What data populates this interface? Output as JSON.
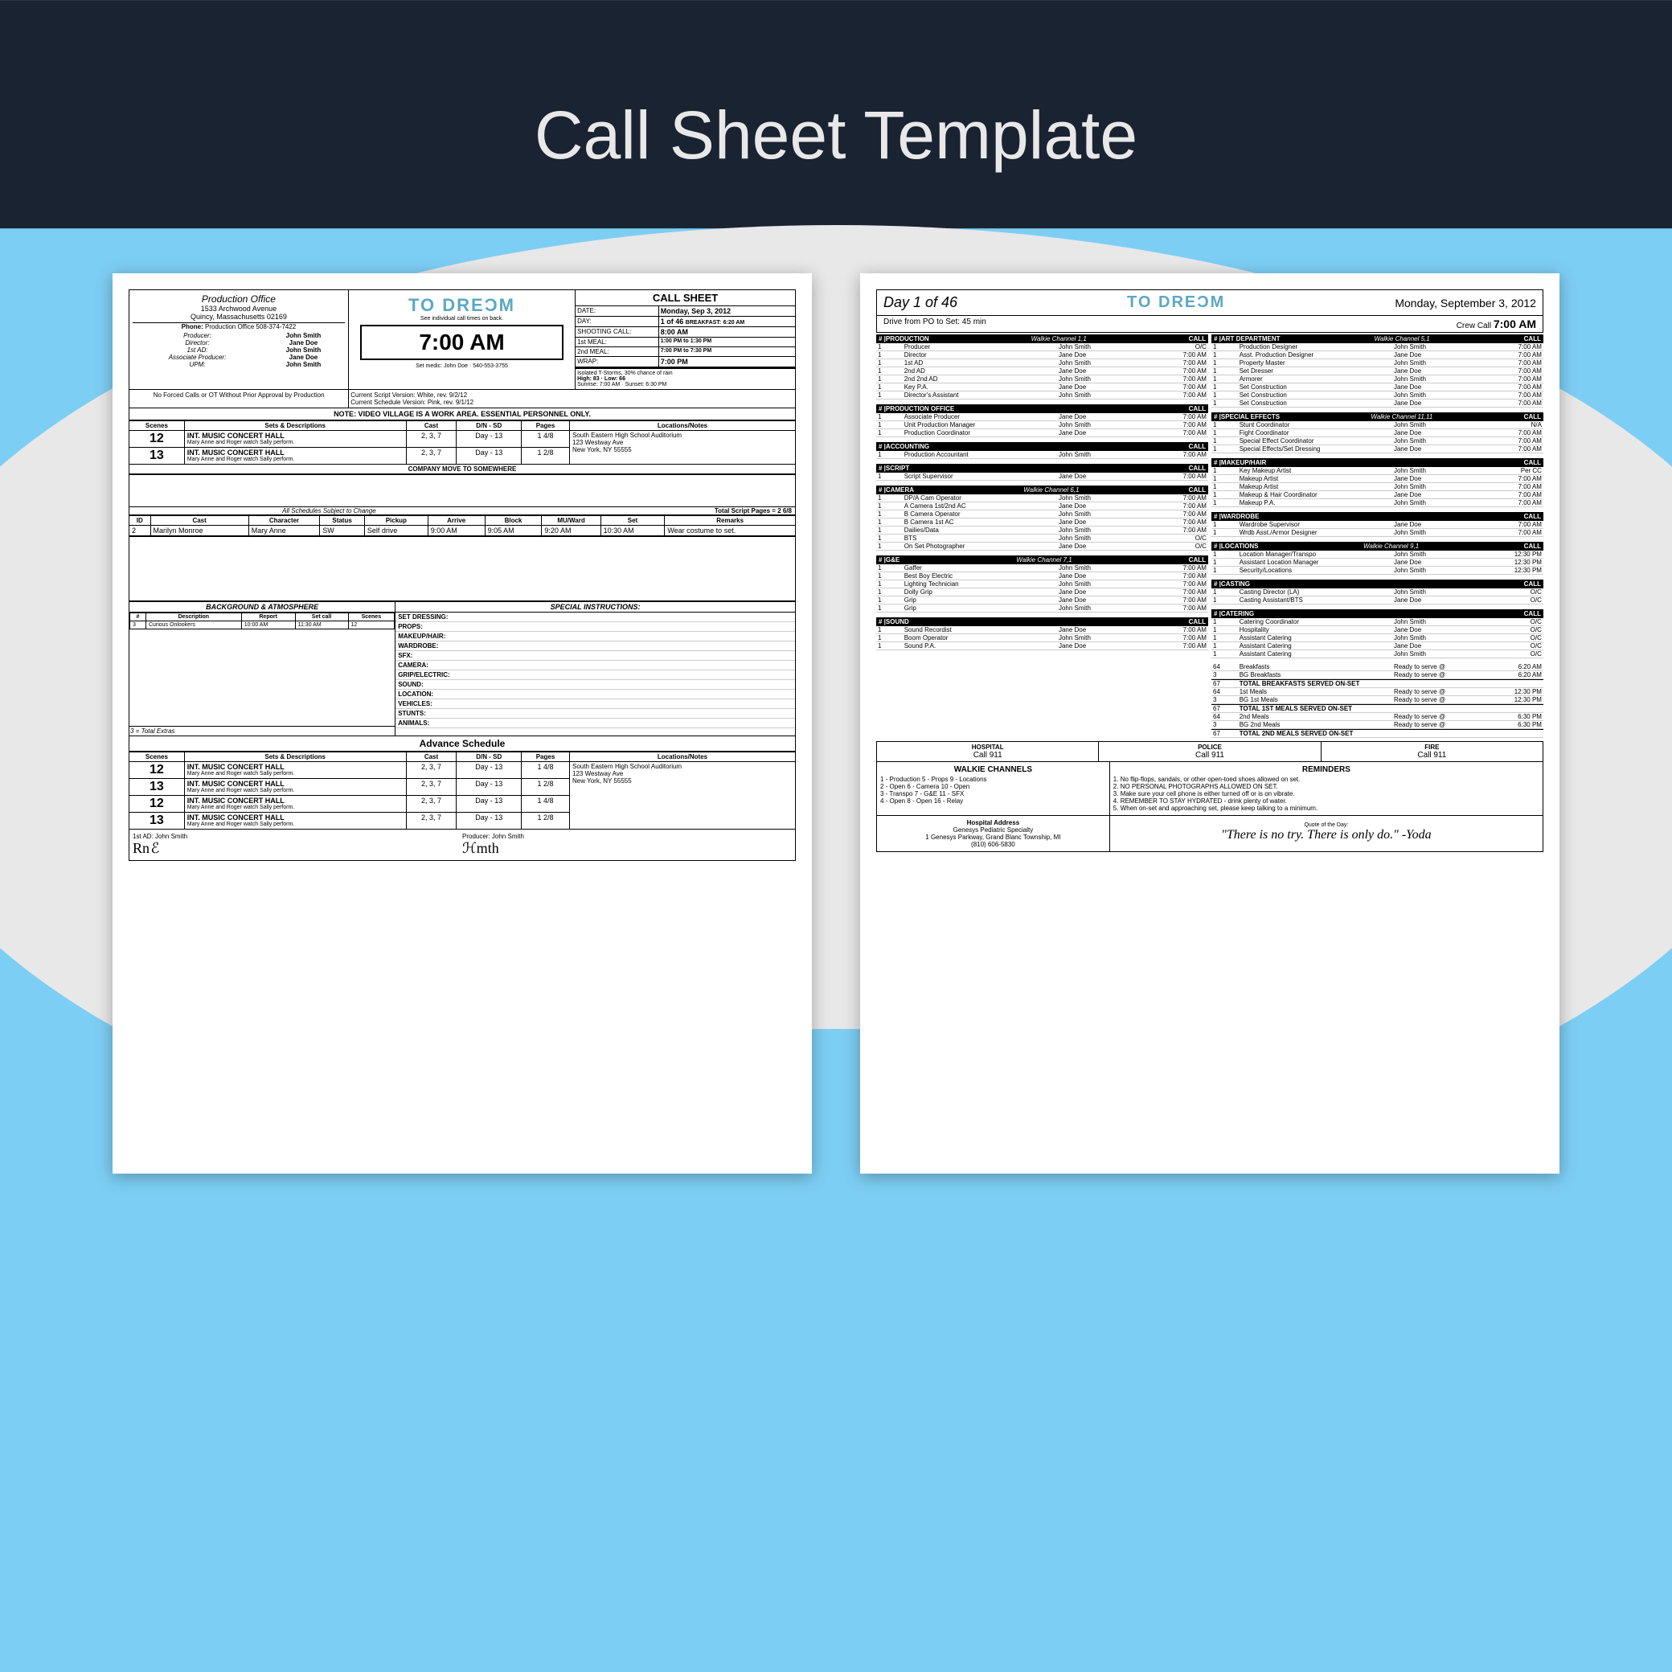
{
  "title": "Call Sheet Template",
  "colors": {
    "bg_dark": "#1a2332",
    "bg_blue": "#7dcef4",
    "bg_gray": "#e8e8e8",
    "logo": "#5ba8c4"
  },
  "page1": {
    "po": {
      "title": "Production Office",
      "addr1": "1533 Archwood Avenue",
      "addr2": "Quincy, Massachusetts 02169",
      "phone_lbl": "Phone:",
      "phone": "Production Office 508-374-7422"
    },
    "staff": [
      [
        "Producer:",
        "John Smith"
      ],
      [
        "Director:",
        "Jane Doe"
      ],
      [
        "1st AD:",
        "John Smith"
      ],
      [
        "Associate Producer:",
        "Jane Doe"
      ],
      [
        "UPM:",
        "John Smith"
      ]
    ],
    "logo": "TO DREƆM",
    "logo_sub": "See individual call times on back.",
    "calltime": "7:00 AM",
    "medic": "Set medic: John Doe · 540-553-3755",
    "cs": {
      "title": "CALL SHEET",
      "date_lbl": "DATE:",
      "date": "Monday, Sep 3, 2012",
      "day_lbl": "DAY:",
      "day": "1 of 46",
      "bkfst_lbl": "BREAKFAST:",
      "bkfst": "6:20 AM",
      "shoot_lbl": "SHOOTING CALL:",
      "shoot": "8:00 AM",
      "m1_lbl": "1st MEAL:",
      "m1": "1:00 PM to 1:30 PM",
      "m2_lbl": "2nd MEAL:",
      "m2": "7:00 PM to 7:30 PM",
      "wrap_lbl": "WRAP:",
      "wrap": "7:00 PM"
    },
    "weather": {
      "cond": "Isolated T-Storms, 30% chance of rain",
      "hl": "High: 83 · Low: 66",
      "sun": "Sunrise: 7:00 AM · Sunset: 6:30 PM"
    },
    "approval": "No Forced Calls or OT Without Prior Approval by Production",
    "versions": "Current Script Version: White, rev. 9/2/12\nCurrent Schedule Version: Pink, rev. 9/1/12",
    "note": "NOTE: VIDEO VILLAGE IS A WORK AREA. ESSENTIAL PERSONNEL ONLY.",
    "scene_hdrs": [
      "Scenes",
      "Sets & Descriptions",
      "Cast",
      "D/N - SD",
      "Pages",
      "Locations/Notes"
    ],
    "scenes": [
      {
        "n": "12",
        "set": "INT. MUSIC CONCERT HALL",
        "d": "Mary Anne and Roger watch Sally perform.",
        "cast": "2, 3, 7",
        "dn": "Day - 13",
        "pg": "1 4/8",
        "loc": "South Eastern High School Auditorium\n123 Westway Ave\nNew York, NY 55555"
      },
      {
        "n": "13",
        "set": "INT. MUSIC CONCERT HALL",
        "d": "Mary Anne and Roger watch Sally perform.",
        "cast": "2, 3, 7",
        "dn": "Day - 13",
        "pg": "1 2/8",
        "loc": ""
      }
    ],
    "company_move": "COMPANY MOVE TO SOMEWHERE",
    "sched_note": "All Schedules Subject to Change",
    "total_pages_lbl": "Total Script Pages =",
    "total_pages": "2 6/8",
    "cast_hdrs": [
      "ID",
      "Cast",
      "Character",
      "Status",
      "Pickup",
      "Arrive",
      "Block",
      "MU/Ward",
      "Set",
      "Remarks"
    ],
    "cast": [
      {
        "id": "2",
        "name": "Marilyn Monroe",
        "char": "Mary Anne",
        "st": "SW",
        "pu": "Self drive",
        "ar": "9:00 AM",
        "bl": "9:05 AM",
        "mu": "9:20 AM",
        "set": "10:30 AM",
        "rem": "Wear costume to set."
      }
    ],
    "bg_hdr": "BACKGROUND & ATMOSPHERE",
    "si_hdr": "SPECIAL INSTRUCTIONS:",
    "bg_cols": [
      "#",
      "Description",
      "Report",
      "Set call",
      "Scenes"
    ],
    "bg_rows": [
      [
        "3",
        "Curious Onlookers",
        "10:00 AM",
        "11:30 AM",
        "12"
      ]
    ],
    "bg_total": "3 = Total Extras",
    "si_items": [
      "SET DRESSING:",
      "PROPS:",
      "MAKEUP/HAIR:",
      "WARDROBE:",
      "SFX:",
      "CAMERA:",
      "GRIP/ELECTRIC:",
      "SOUND:",
      "LOCATION:",
      "VEHICLES:",
      "STUNTS:",
      "ANIMALS:"
    ],
    "adv_hdr": "Advance Schedule",
    "adv_scenes": [
      {
        "n": "12",
        "set": "INT. MUSIC CONCERT HALL",
        "d": "Mary Anne and Roger watch Sally perform.",
        "cast": "2, 3, 7",
        "dn": "Day - 13",
        "pg": "1 4/8"
      },
      {
        "n": "13",
        "set": "INT. MUSIC CONCERT HALL",
        "d": "Mary Anne and Roger watch Sally perform.",
        "cast": "2, 3, 7",
        "dn": "Day - 13",
        "pg": "1 2/8"
      },
      {
        "n": "12",
        "set": "INT. MUSIC CONCERT HALL",
        "d": "Mary Anne and Roger watch Sally perform.",
        "cast": "2, 3, 7",
        "dn": "Day - 13",
        "pg": "1 4/8"
      },
      {
        "n": "13",
        "set": "INT. MUSIC CONCERT HALL",
        "d": "Mary Anne and Roger watch Sally perform.",
        "cast": "2, 3, 7",
        "dn": "Day - 13",
        "pg": "1 2/8"
      }
    ],
    "adv_loc": "South Eastern High School Auditorium\n123 Westway Ave\nNew York, NY 55555",
    "sig_ad": "1st AD: John Smith",
    "sig_prod": "Producer: John Smith"
  },
  "page2": {
    "day": "Day 1 of 46",
    "logo": "TO DREƆM",
    "date": "Monday, September 3, 2012",
    "drive": "Drive from PO to Set: 45 min",
    "crew_lbl": "Crew Call",
    "crew_time": "7:00 AM",
    "depts_left": [
      {
        "name": "PRODUCTION",
        "ch": "Walkie Channel 1,1",
        "rows": [
          [
            "1",
            "Producer",
            "John Smith",
            "O/C"
          ],
          [
            "1",
            "Director",
            "Jane Doe",
            "7:00 AM"
          ],
          [
            "1",
            "1st AD",
            "John Smith",
            "7:00 AM"
          ],
          [
            "1",
            "2nd AD",
            "Jane Doe",
            "7:00 AM"
          ],
          [
            "1",
            "2nd 2nd AD",
            "John Smith",
            "7:00 AM"
          ],
          [
            "1",
            "Key P.A.",
            "Jane Doe",
            "7:00 AM"
          ],
          [
            "1",
            "Director's Assistant",
            "John Smith",
            "7:00 AM"
          ]
        ]
      },
      {
        "name": "PRODUCTION OFFICE",
        "ch": "",
        "rows": [
          [
            "1",
            "Associate Producer",
            "Jane Doe",
            "7:00 AM"
          ],
          [
            "1",
            "Unit Production Manager",
            "John Smith",
            "7:00 AM"
          ],
          [
            "1",
            "Production Coordinator",
            "Jane Doe",
            "7:00 AM"
          ]
        ]
      },
      {
        "name": "ACCOUNTING",
        "ch": "",
        "rows": [
          [
            "1",
            "Production Accountant",
            "John Smith",
            "7:00 AM"
          ]
        ]
      },
      {
        "name": "SCRIPT",
        "ch": "",
        "rows": [
          [
            "1",
            "Script Supervisor",
            "Jane Doe",
            "7:00 AM"
          ]
        ]
      },
      {
        "name": "CAMERA",
        "ch": "Walkie Channel 6,1",
        "rows": [
          [
            "1",
            "DP/A Cam Operator",
            "John Smith",
            "7:00 AM"
          ],
          [
            "1",
            "A Camera 1st/2nd AC",
            "Jane Doe",
            "7:00 AM"
          ],
          [
            "1",
            "B Camera Operator",
            "John Smith",
            "7:00 AM"
          ],
          [
            "1",
            "B Camera 1st AC",
            "Jane Doe",
            "7:00 AM"
          ],
          [
            "1",
            "Dailies/Data",
            "John Smith",
            "7:00 AM"
          ],
          [
            "1",
            "BTS",
            "John Smith",
            "O/C"
          ],
          [
            "1",
            "On Set Photographer",
            "Jane Doe",
            "O/C"
          ]
        ]
      },
      {
        "name": "G&E",
        "ch": "Walkie Channel 7,1",
        "rows": [
          [
            "1",
            "Gaffer",
            "John Smith",
            "7:00 AM"
          ],
          [
            "1",
            "Best Boy Electric",
            "Jane Doe",
            "7:00 AM"
          ],
          [
            "1",
            "Lighting Technician",
            "John Smith",
            "7:00 AM"
          ],
          [
            "1",
            "Dolly Grip",
            "Jane Doe",
            "7:00 AM"
          ],
          [
            "1",
            "Grip",
            "Jane Doe",
            "7:00 AM"
          ],
          [
            "1",
            "Grip",
            "John Smith",
            "7:00 AM"
          ]
        ]
      },
      {
        "name": "SOUND",
        "ch": "",
        "rows": [
          [
            "1",
            "Sound Recordist",
            "Jane Doe",
            "7:00 AM"
          ],
          [
            "1",
            "Boom Operator",
            "John Smith",
            "7:00 AM"
          ],
          [
            "1",
            "Sound P.A.",
            "Jane Doe",
            "7:00 AM"
          ]
        ]
      }
    ],
    "depts_right": [
      {
        "name": "ART DEPARTMENT",
        "ch": "Walkie Channel 5,1",
        "rows": [
          [
            "1",
            "Production Designer",
            "John Smith",
            "7:00 AM"
          ],
          [
            "1",
            "Asst. Production Designer",
            "Jane Doe",
            "7:00 AM"
          ],
          [
            "1",
            "Property Master",
            "John Smith",
            "7:00 AM"
          ],
          [
            "1",
            "Set Dresser",
            "Jane Doe",
            "7:00 AM"
          ],
          [
            "1",
            "Armorer",
            "John Smith",
            "7:00 AM"
          ],
          [
            "1",
            "Set Construction",
            "Jane Doe",
            "7:00 AM"
          ],
          [
            "1",
            "Set Construction",
            "John Smith",
            "7:00 AM"
          ],
          [
            "1",
            "Set Construction",
            "Jane Doe",
            "7:00 AM"
          ]
        ]
      },
      {
        "name": "SPECIAL EFFECTS",
        "ch": "Walkie Channel 11,11",
        "rows": [
          [
            "1",
            "Stunt Coordinator",
            "John Smith",
            "N/A"
          ],
          [
            "1",
            "Fight Coordinator",
            "Jane Doe",
            "7:00 AM"
          ],
          [
            "1",
            "Special Effect Coordinator",
            "John Smith",
            "7:00 AM"
          ],
          [
            "1",
            "Special Effects/Set Dressing",
            "Jane Doe",
            "7:00 AM"
          ]
        ]
      },
      {
        "name": "MAKEUP/HAIR",
        "ch": "",
        "rows": [
          [
            "1",
            "Key Makeup Artist",
            "John Smith",
            "Per CC"
          ],
          [
            "1",
            "Makeup Artist",
            "Jane Doe",
            "7:00 AM"
          ],
          [
            "1",
            "Makeup Artist",
            "John Smith",
            "7:00 AM"
          ],
          [
            "1",
            "Makeup & Hair Coordinator",
            "Jane Doe",
            "7:00 AM"
          ],
          [
            "1",
            "Makeup P.A.",
            "John Smith",
            "7:00 AM"
          ]
        ]
      },
      {
        "name": "WARDROBE",
        "ch": "",
        "rows": [
          [
            "1",
            "Wardrobe Supervisor",
            "Jane Doe",
            "7:00 AM"
          ],
          [
            "1",
            "Wrdb Asst./Armor Designer",
            "John Smith",
            "7:00 AM"
          ]
        ]
      },
      {
        "name": "LOCATIONS",
        "ch": "Walkie Channel 9,1",
        "rows": [
          [
            "1",
            "Location Manager/Transpo",
            "John Smith",
            "12:30 PM"
          ],
          [
            "1",
            "Assistant Location Manager",
            "Jane Doe",
            "12:30 PM"
          ],
          [
            "1",
            "Security/Locations",
            "John Smith",
            "12:30 PM"
          ]
        ]
      },
      {
        "name": "CASTING",
        "ch": "",
        "rows": [
          [
            "1",
            "Casting Director (LA)",
            "John Smith",
            "O/C"
          ],
          [
            "1",
            "Casting Assistant/BTS",
            "Jane Doe",
            "O/C"
          ]
        ]
      },
      {
        "name": "CATERING",
        "ch": "",
        "rows": [
          [
            "1",
            "Catering Coordinator",
            "John Smith",
            "O/C"
          ],
          [
            "1",
            "Hospitality",
            "Jane Doe",
            "O/C"
          ],
          [
            "1",
            "Assistant Catering",
            "John Smith",
            "O/C"
          ],
          [
            "1",
            "Assistant Catering",
            "Jane Doe",
            "O/C"
          ],
          [
            "1",
            "Assistant Catering",
            "John Smith",
            "O/C"
          ]
        ]
      }
    ],
    "meals": [
      [
        "64",
        "Breakfasts",
        "Ready to serve @",
        "6:20 AM"
      ],
      [
        "3",
        "BG Breakfasts",
        "Ready to serve @",
        "6:20 AM"
      ],
      [
        "67",
        "TOTAL BREAKFASTS SERVED ON-SET",
        "",
        ""
      ],
      [
        "64",
        "1st Meals",
        "Ready to serve @",
        "12:30 PM"
      ],
      [
        "3",
        "BG 1st Meals",
        "Ready to serve @",
        "12:30 PM"
      ],
      [
        "67",
        "TOTAL 1ST MEALS SERVED ON-SET",
        "",
        ""
      ],
      [
        "64",
        "2nd Meals",
        "Ready to serve @",
        "6:30 PM"
      ],
      [
        "3",
        "BG 2nd Meals",
        "Ready to serve @",
        "6:30 PM"
      ],
      [
        "67",
        "TOTAL 2ND MEALS SERVED ON-SET",
        "",
        ""
      ]
    ],
    "emerg": [
      [
        "HOSPITAL",
        "Call 911"
      ],
      [
        "POLICE",
        "Call 911"
      ],
      [
        "FIRE",
        "Call 911"
      ]
    ],
    "walkie_hdr": "WALKIE CHANNELS",
    "walkie": "1 - Production   5 - Props   9 - Locations\n2 - Open   6 - Camera   10 - Open\n3 - Transpo   7 - G&E   11 - SFX\n4 - Open   8 - Open   16 - Relay",
    "rem_hdr": "REMINDERS",
    "reminders": [
      "1. No flip-flops, sandals, or other open-toed shoes allowed on set.",
      "2. NO PERSONAL PHOTOGRAPHS ALLOWED ON SET.",
      "3. Make sure your cell phone is either turned off or is on vibrate.",
      "4. REMEMBER TO STAY HYDRATED - drink plenty of water.",
      "5. When on-set and approaching set, please keep talking to a minimum."
    ],
    "hosp_hdr": "Hospital Address",
    "hosp": "Genesys Pediatric Specialty\n1 Genesys Parkway, Grand Blanc Township, MI\n(810) 606-5830",
    "quote_hdr": "Quote of the Day:",
    "quote": "\"There is no try. There is only do.\" -Yoda"
  }
}
